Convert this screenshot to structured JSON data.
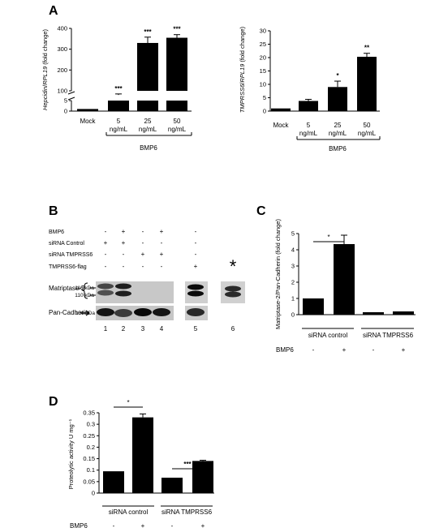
{
  "panels": {
    "A": "A",
    "B": "B",
    "C": "C",
    "D": "D"
  },
  "chart_data": [
    {
      "type": "bar",
      "panel": "A-left",
      "categories": [
        "Mock",
        "5",
        "25",
        "50"
      ],
      "category_sublabels": [
        "",
        "ng/mL",
        "ng/mL",
        "ng/mL"
      ],
      "values": [
        1,
        80,
        330,
        355
      ],
      "errors": [
        0,
        5,
        28,
        15
      ],
      "significance": [
        "",
        "***",
        "***",
        "***"
      ],
      "ylabel_italic_1": "Hepcidin",
      "ylabel_sep": "/",
      "ylabel_italic_2": "RPL19",
      "ylabel_suffix": " (fold change)",
      "yticks_lower": [
        0,
        5
      ],
      "yticks_upper": [
        100,
        200,
        300,
        400
      ],
      "ylim": [
        0,
        400
      ],
      "axis_break": [
        5,
        100
      ],
      "group_label": "BMP6"
    },
    {
      "type": "bar",
      "panel": "A-right",
      "categories": [
        "Mock",
        "5",
        "25",
        "50"
      ],
      "category_sublabels": [
        "",
        "ng/mL",
        "ng/mL",
        "ng/mL"
      ],
      "values": [
        1,
        3.8,
        9.0,
        20.3
      ],
      "errors": [
        0,
        0.6,
        2.2,
        1.3
      ],
      "significance": [
        "",
        "",
        "*",
        "**"
      ],
      "ylabel_italic_1": "TMPRSS6",
      "ylabel_sep": "/",
      "ylabel_italic_2": "RPL19",
      "ylabel_suffix": " (fold change)",
      "yticks": [
        0,
        5,
        10,
        15,
        20,
        25,
        30
      ],
      "ylim": [
        0,
        30
      ],
      "group_label": "BMP6"
    },
    {
      "type": "bar",
      "panel": "C",
      "categories": [
        "siRNA control",
        "siRNA control",
        "siRNA TMPRSS6",
        "siRNA TMPRSS6"
      ],
      "group_labels": [
        "siRNA control",
        "siRNA TMPRSS6"
      ],
      "bmp6_row_label": "BMP6",
      "bmp6_signs": [
        "-",
        "+",
        "-",
        "+"
      ],
      "values": [
        1.0,
        4.35,
        0.15,
        0.2
      ],
      "errors": [
        0,
        0.55,
        0,
        0
      ],
      "ylabel": "Matriptase-2/Pan-Cadherin (fold change)",
      "yticks": [
        "0",
        "1",
        "2",
        "3",
        "4",
        "5"
      ],
      "ylim": [
        0,
        5
      ],
      "significance_label": "*"
    },
    {
      "type": "bar",
      "panel": "D",
      "group_labels": [
        "siRNA control",
        "siRNA TMPRSS6"
      ],
      "bmp6_row_label": "BMP6",
      "bmp6_signs": [
        "-",
        "+",
        "-",
        "+"
      ],
      "values": [
        0.095,
        0.33,
        0.067,
        0.14
      ],
      "errors": [
        0,
        0.015,
        0,
        0.003
      ],
      "ylabel": "Proteolytic activity U mg⁻¹",
      "yticks": [
        "0",
        "0.05",
        "0.1",
        "0.15",
        "0.2",
        "0.25",
        "0.3",
        "0.35"
      ],
      "ylim": [
        0,
        0.35
      ],
      "significance_labels": [
        "*",
        "***"
      ]
    }
  ],
  "blot": {
    "rows": [
      {
        "label": "BMP6",
        "signs": [
          "-",
          "+",
          "-",
          "+",
          "-",
          ""
        ]
      },
      {
        "label": "siRNA Control",
        "signs": [
          "+",
          "+",
          "-",
          "-",
          "-",
          ""
        ]
      },
      {
        "label": "siRNA TMPRSS6",
        "signs": [
          "-",
          "-",
          "+",
          "+",
          "-",
          ""
        ]
      },
      {
        "label": "TMPRSS6-flag",
        "signs": [
          "-",
          "-",
          "-",
          "-",
          "+",
          ""
        ]
      }
    ],
    "asterisk": "*",
    "matriptase_label": "Matriptase-2",
    "kda_116": "116 kDa",
    "kda_110": "110 kDa",
    "pancadherin_label": "Pan-Cadherin",
    "kda_130": "130 kDa",
    "lanes": [
      "1",
      "2",
      "3",
      "4",
      "5",
      "6"
    ]
  }
}
